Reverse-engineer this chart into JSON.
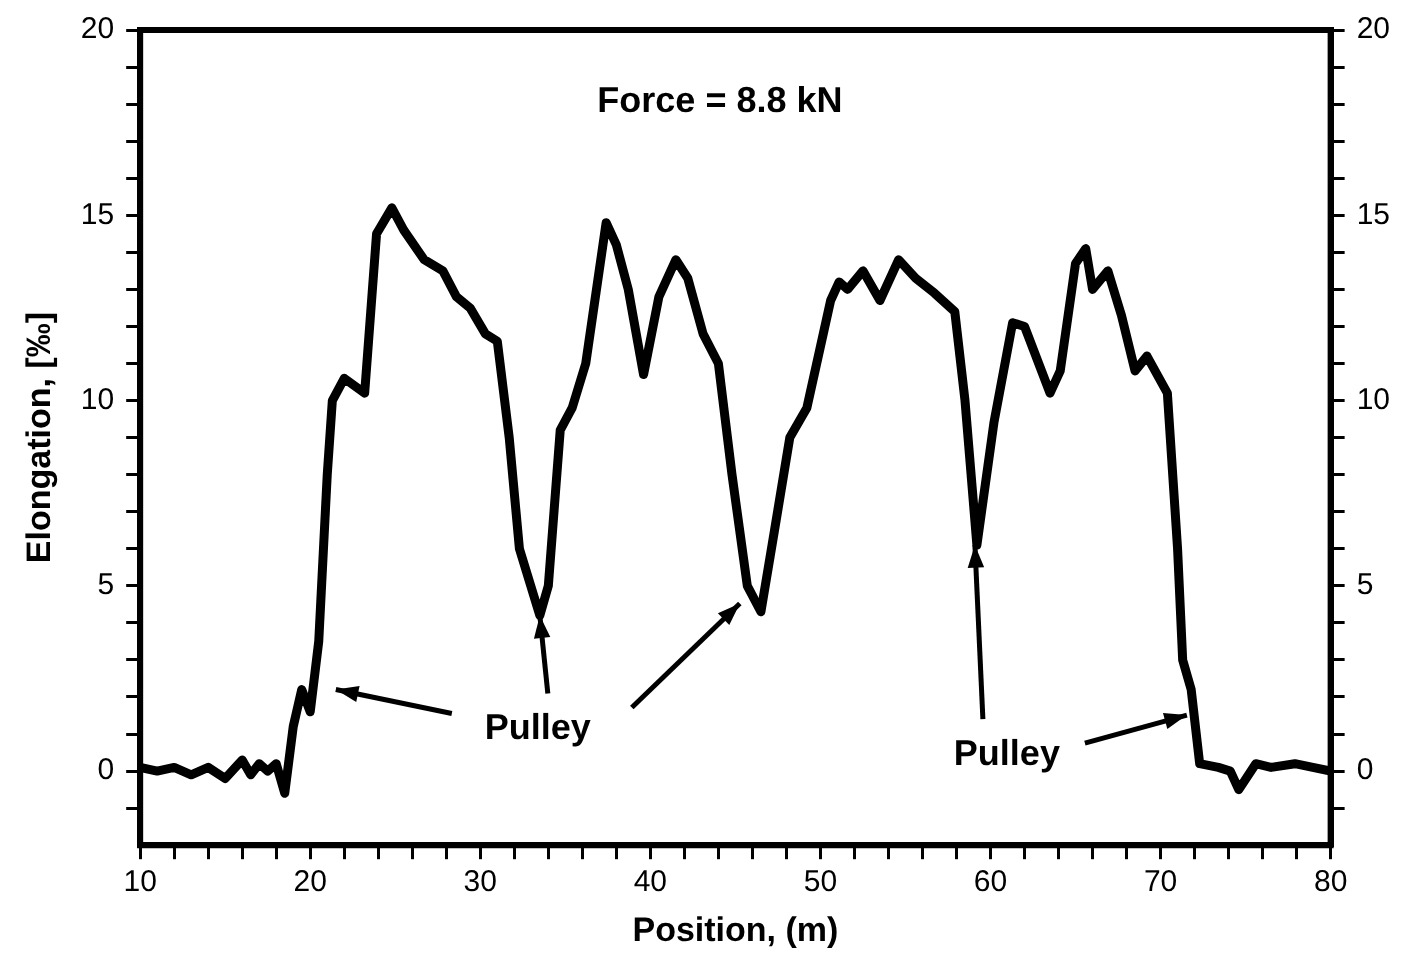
{
  "chart_data": {
    "type": "line",
    "xlabel": "Position, (m)",
    "ylabel": "Elongation, [‰]",
    "annotations": [
      "Force = 8.8 kN",
      {
        "text": "Pulley",
        "x": 33.5,
        "y": 4.2
      },
      {
        "text": "Pulley",
        "x": 59.2,
        "y": 6.1
      }
    ],
    "series": [
      {
        "color": "#000000",
        "x": [
          10,
          11,
          12,
          13,
          14,
          15,
          16,
          16.5,
          17,
          17.5,
          18,
          18.5,
          19,
          19.5,
          20,
          20.5,
          21,
          21.3,
          22,
          23.2,
          23.9,
          24.8,
          25.5,
          26.7,
          27.8,
          28.6,
          29.4,
          30.3,
          31,
          31.7,
          32.3,
          33.5,
          34,
          34.7,
          35.4,
          36.2,
          37.4,
          38,
          38.7,
          39.6,
          40.5,
          41.5,
          42.2,
          43.1,
          44,
          44.8,
          45.7,
          46.5,
          47.3,
          48.2,
          49.2,
          50.6,
          51.1,
          51.6,
          52.5,
          53.5,
          54.6,
          55.6,
          56.7,
          57.9,
          58.5,
          59.2,
          60.2,
          61.3,
          62,
          63.5,
          64.1,
          65,
          65.6,
          66,
          66.9,
          67.7,
          68.5,
          69.2,
          70.4,
          71,
          71.3,
          71.8,
          72.3,
          73.4,
          74.1,
          74.6,
          75.6,
          76.5,
          77.9,
          80
        ],
        "values": [
          0.1,
          0,
          0.1,
          -0.1,
          0.1,
          -0.2,
          0.3,
          -0.1,
          0.2,
          0,
          0.2,
          -0.6,
          1.2,
          2.2,
          1.6,
          3.5,
          8,
          10,
          10.6,
          10.2,
          14.5,
          15.2,
          14.6,
          13.8,
          13.5,
          12.8,
          12.5,
          11.8,
          11.6,
          9,
          6,
          4.2,
          5,
          9.2,
          9.8,
          11,
          14.8,
          14.2,
          13,
          10.7,
          12.8,
          13.8,
          13.3,
          11.8,
          11,
          8,
          5,
          4.3,
          6.5,
          9,
          9.8,
          12.7,
          13.2,
          13,
          13.5,
          12.7,
          13.8,
          13.3,
          12.9,
          12.4,
          10,
          6.1,
          9.4,
          12.1,
          12,
          10.2,
          10.8,
          13.7,
          14.1,
          13,
          13.5,
          12.3,
          10.8,
          11.2,
          10.2,
          6,
          3,
          2.2,
          0.2,
          0.1,
          0,
          -0.5,
          0.2,
          0.1,
          0.2,
          0
        ]
      }
    ],
    "xlim": [
      10,
      80
    ],
    "xticks": [
      10,
      {
        "value": 12,
        "label": null
      },
      {
        "value": 14,
        "label": null
      },
      {
        "value": 16,
        "label": null
      },
      {
        "value": 18,
        "label": null
      },
      20,
      {
        "value": 22,
        "label": null
      },
      {
        "value": 24,
        "label": null
      },
      {
        "value": 26,
        "label": null
      },
      {
        "value": 28,
        "label": null
      },
      30,
      {
        "value": 32,
        "label": null
      },
      {
        "value": 34,
        "label": null
      },
      {
        "value": 36,
        "label": null
      },
      {
        "value": 38,
        "label": null
      },
      40,
      {
        "value": 42,
        "label": null
      },
      {
        "value": 44,
        "label": null
      },
      {
        "value": 46,
        "label": null
      },
      {
        "value": 48,
        "label": null
      },
      50,
      {
        "value": 52,
        "label": null
      },
      {
        "value": 54,
        "label": null
      },
      {
        "value": 56,
        "label": null
      },
      {
        "value": 58,
        "label": null
      },
      60,
      {
        "value": 62,
        "label": null
      },
      {
        "value": 64,
        "label": null
      },
      {
        "value": 66,
        "label": null
      },
      {
        "value": 68,
        "label": null
      },
      70,
      {
        "value": 72,
        "label": null
      },
      {
        "value": 74,
        "label": null
      },
      {
        "value": 76,
        "label": null
      },
      {
        "value": 78,
        "label": null
      },
      80
    ],
    "ylim": [
      -2,
      20
    ],
    "yticks": [
      {
        "value": -1,
        "label": null
      },
      0,
      {
        "value": 1,
        "label": null
      },
      {
        "value": 2,
        "label": null
      },
      {
        "value": 3,
        "label": null
      },
      {
        "value": 4,
        "label": null
      },
      5,
      {
        "value": 6,
        "label": null
      },
      {
        "value": 7,
        "label": null
      },
      {
        "value": 8,
        "label": null
      },
      {
        "value": 9,
        "label": null
      },
      10,
      {
        "value": 11,
        "label": null
      },
      {
        "value": 12,
        "label": null
      },
      {
        "value": 13,
        "label": null
      },
      {
        "value": 14,
        "label": null
      },
      15,
      {
        "value": 16,
        "label": null
      },
      {
        "value": 17,
        "label": null
      },
      {
        "value": 18,
        "label": null
      },
      {
        "value": 19,
        "label": null
      },
      20
    ],
    "y2lim": [
      -2,
      20
    ],
    "y2ticks": [
      {
        "value": -1,
        "label": null
      },
      0,
      {
        "value": 1,
        "label": null
      },
      {
        "value": 2,
        "label": null
      },
      {
        "value": 3,
        "label": null
      },
      {
        "value": 4,
        "label": null
      },
      5,
      {
        "value": 6,
        "label": null
      },
      {
        "value": 7,
        "label": null
      },
      {
        "value": 8,
        "label": null
      },
      {
        "value": 9,
        "label": null
      },
      10,
      {
        "value": 11,
        "label": null
      },
      {
        "value": 12,
        "label": null
      },
      {
        "value": 13,
        "label": null
      },
      {
        "value": 14,
        "label": null
      },
      15,
      {
        "value": 16,
        "label": null
      },
      {
        "value": 17,
        "label": null
      },
      {
        "value": 18,
        "label": null
      },
      {
        "value": 19,
        "label": null
      },
      20
    ],
    "marker": "none",
    "line_style": "solid"
  }
}
